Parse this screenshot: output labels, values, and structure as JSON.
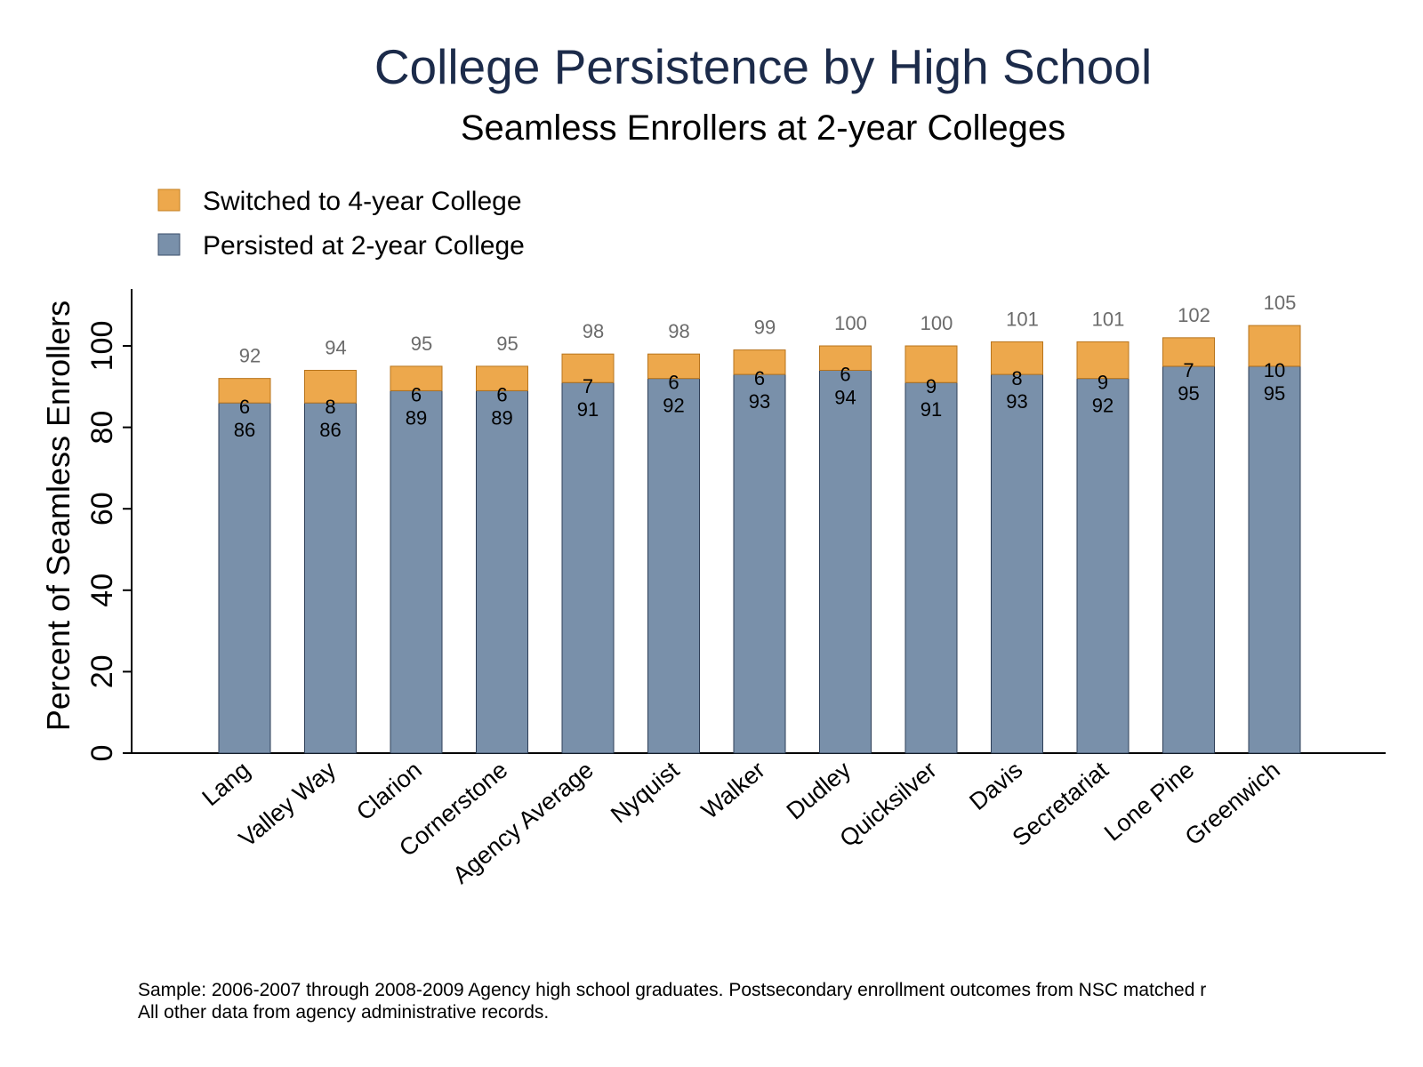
{
  "chart_data": {
    "type": "bar",
    "stacked": true,
    "title": "College Persistence by High School",
    "subtitle": "Seamless Enrollers at 2-year Colleges",
    "xlabel": "",
    "ylabel": "Percent of Seamless Enrollers",
    "ylim": [
      0,
      110
    ],
    "yticks": [
      0,
      20,
      40,
      60,
      80,
      100
    ],
    "grid": false,
    "legend_position": "top-left",
    "categories": [
      "Lang",
      "Valley Way",
      "Clarion",
      "Cornerstone",
      "Agency Average",
      "Nyquist",
      "Walker",
      "Dudley",
      "Quicksilver",
      "Davis",
      "Secretariat",
      "Lone Pine",
      "Greenwich"
    ],
    "series": [
      {
        "name": "Persisted at 2-year College",
        "color": "#7990aa",
        "values": [
          86,
          86,
          89,
          89,
          91,
          92,
          93,
          94,
          91,
          93,
          92,
          95,
          95
        ]
      },
      {
        "name": "Switched to 4-year College",
        "color": "#eda84c",
        "values": [
          6,
          8,
          6,
          6,
          7,
          6,
          6,
          6,
          9,
          8,
          9,
          7,
          10
        ]
      }
    ],
    "totals": [
      92,
      94,
      95,
      95,
      98,
      98,
      99,
      100,
      100,
      101,
      101,
      102,
      105
    ],
    "note_lines": [
      "Sample: 2006-2007 through 2008-2009 Agency high school graduates. Postsecondary enrollment outcomes from NSC matched r",
      "All other data from agency administrative records."
    ]
  }
}
